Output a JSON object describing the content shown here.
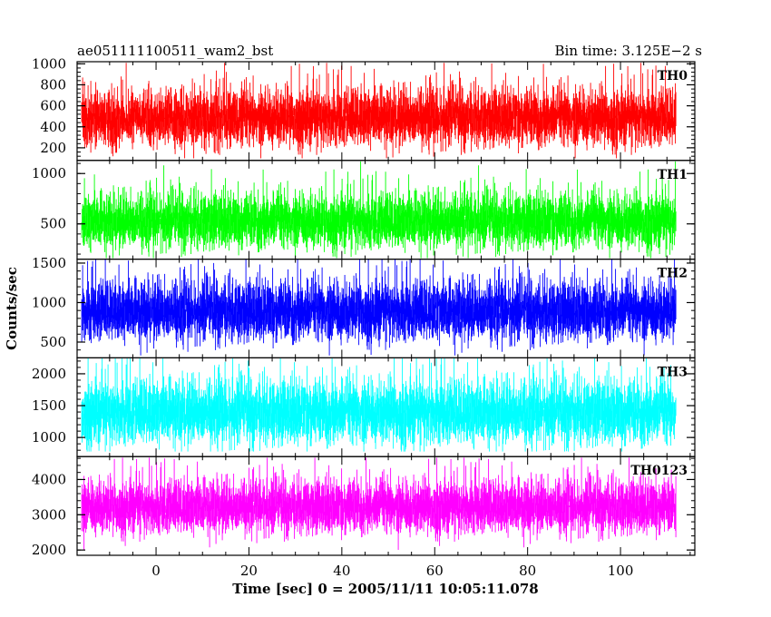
{
  "title_left": "ae051111100511_wam2_bst",
  "title_right": "Bin time: 3.125E−2 s",
  "xlabel": "Time [sec] 0 = 2005/11/11 10:05:11.078",
  "ylabel": "Counts/sec",
  "chart_data": {
    "type": "line",
    "xlim": [
      -17,
      116
    ],
    "x_range": [
      -16,
      112
    ],
    "bin_time": 0.03125,
    "x_ticks": [
      0,
      20,
      40,
      60,
      80,
      100
    ],
    "x_tick_labels": [
      "0",
      "20",
      "40",
      "60",
      "80",
      "100"
    ],
    "panels": [
      {
        "name": "TH0",
        "color": "#ff0000",
        "ylim": [
          80,
          1020
        ],
        "y_ticks": [
          200,
          400,
          600,
          800,
          1000
        ],
        "y_tick_labels": [
          "200",
          "400",
          "600",
          "800",
          "1000"
        ],
        "mean": 480,
        "sigma": 130,
        "min": 100,
        "max": 1010
      },
      {
        "name": "TH1",
        "color": "#00ff00",
        "ylim": [
          150,
          1130
        ],
        "y_ticks": [
          500,
          1000
        ],
        "y_tick_labels": [
          "500",
          "1000"
        ],
        "mean": 520,
        "sigma": 130,
        "min": 160,
        "max": 1120
      },
      {
        "name": "TH2",
        "color": "#0000ff",
        "ylim": [
          300,
          1550
        ],
        "y_ticks": [
          500,
          1000,
          1500
        ],
        "y_tick_labels": [
          "500",
          "1000",
          "1500"
        ],
        "mean": 880,
        "sigma": 180,
        "min": 330,
        "max": 1560
      },
      {
        "name": "TH3",
        "color": "#00ffff",
        "ylim": [
          700,
          2250
        ],
        "y_ticks": [
          1000,
          1500,
          2000
        ],
        "y_tick_labels": [
          "1000",
          "1500",
          "2000"
        ],
        "mean": 1380,
        "sigma": 240,
        "min": 780,
        "max": 2240
      },
      {
        "name": "TH0123",
        "color": "#ff00ff",
        "ylim": [
          1850,
          4650
        ],
        "y_ticks": [
          2000,
          3000,
          4000
        ],
        "y_tick_labels": [
          "2000",
          "3000",
          "4000"
        ],
        "mean": 3200,
        "sigma": 360,
        "min": 1900,
        "max": 4620
      }
    ]
  }
}
